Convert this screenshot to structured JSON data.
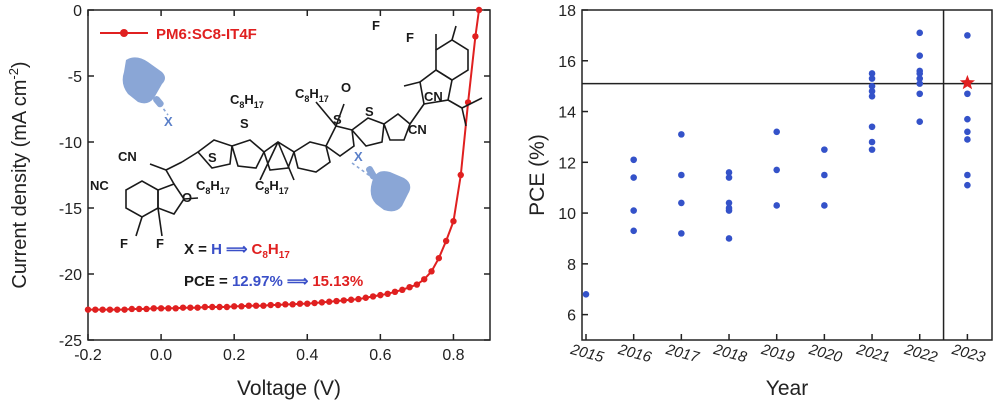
{
  "chart_data": [
    {
      "type": "line",
      "xlabel": "Voltage (V)",
      "ylabel": "Current density (mA cm",
      "ylabel_sup": "-2",
      "ylabel_close": ")",
      "xlim": [
        -0.2,
        0.9
      ],
      "ylim": [
        -25,
        0
      ],
      "xticks": [
        "-0.2",
        "0.0",
        "0.2",
        "0.4",
        "0.6",
        "0.8"
      ],
      "yticks": [
        "-25",
        "-20",
        "-15",
        "-10",
        "-5",
        "0"
      ],
      "xtick_values": [
        -0.2,
        0.0,
        0.2,
        0.4,
        0.6,
        0.8
      ],
      "ytick_values": [
        -25,
        -20,
        -15,
        -10,
        -5,
        0
      ],
      "series": [
        {
          "name": "PM6:SC8-IT4F",
          "color": "#e02020",
          "x": [
            -0.2,
            -0.18,
            -0.16,
            -0.14,
            -0.12,
            -0.1,
            -0.08,
            -0.06,
            -0.04,
            -0.02,
            0.0,
            0.02,
            0.04,
            0.06,
            0.08,
            0.1,
            0.12,
            0.14,
            0.16,
            0.18,
            0.2,
            0.22,
            0.24,
            0.26,
            0.28,
            0.3,
            0.32,
            0.34,
            0.36,
            0.38,
            0.4,
            0.42,
            0.44,
            0.46,
            0.48,
            0.5,
            0.52,
            0.54,
            0.56,
            0.58,
            0.6,
            0.62,
            0.64,
            0.66,
            0.68,
            0.7,
            0.72,
            0.74,
            0.76,
            0.78,
            0.8,
            0.82,
            0.84,
            0.86,
            0.87
          ],
          "y": [
            -22.7,
            -22.7,
            -22.7,
            -22.7,
            -22.7,
            -22.7,
            -22.65,
            -22.65,
            -22.65,
            -22.6,
            -22.6,
            -22.6,
            -22.6,
            -22.55,
            -22.55,
            -22.55,
            -22.5,
            -22.5,
            -22.5,
            -22.5,
            -22.45,
            -22.45,
            -22.4,
            -22.4,
            -22.4,
            -22.35,
            -22.35,
            -22.3,
            -22.3,
            -22.25,
            -22.25,
            -22.2,
            -22.15,
            -22.1,
            -22.05,
            -22.0,
            -21.95,
            -21.9,
            -21.8,
            -21.7,
            -21.6,
            -21.5,
            -21.35,
            -21.2,
            -21.0,
            -20.8,
            -20.4,
            -19.8,
            -18.8,
            -17.5,
            -16.0,
            -12.5,
            -7.0,
            -2.0,
            0.0
          ]
        }
      ],
      "annotations": {
        "x_label": "X = ",
        "x_from": "H",
        "x_arrow": "⟹",
        "x_to_main": "C",
        "x_to_sub": "8",
        "x_to_main2": "H",
        "x_to_sub2": "17",
        "pce_label": "PCE = ",
        "pce_from": "12.97%",
        "pce_arrow": "⟹",
        "pce_to": "15.13%",
        "struct_labels": {
          "nc": "NC",
          "cn": "CN",
          "o": "O",
          "s": "S",
          "f": "F",
          "x": "X",
          "c": "C",
          "h": "H",
          "sub8": "8",
          "sub17": "17"
        },
        "colors": {
          "blue": "#3a4fc8",
          "red": "#e02020",
          "hand": "#8aa6d6"
        }
      }
    },
    {
      "type": "scatter",
      "xlabel": "Year",
      "ylabel": "PCE (%)",
      "categories": [
        "2015",
        "2016",
        "2017",
        "2018",
        "2019",
        "2020",
        "2021",
        "2022",
        "2023"
      ],
      "ylim": [
        5,
        18
      ],
      "yticks": [
        "6",
        "8",
        "10",
        "12",
        "14",
        "16",
        "18"
      ],
      "ytick_values": [
        6,
        8,
        10,
        12,
        14,
        16,
        18
      ],
      "hline": 15.1,
      "vline_after": "2022",
      "grid": false,
      "points_color": "#3452c9",
      "star_color": "#e02020",
      "points": [
        {
          "year": "2015",
          "values": [
            6.8
          ]
        },
        {
          "year": "2016",
          "values": [
            12.1,
            11.4,
            10.1,
            9.3
          ]
        },
        {
          "year": "2017",
          "values": [
            13.1,
            11.5,
            10.4,
            9.2
          ]
        },
        {
          "year": "2018",
          "values": [
            11.6,
            11.4,
            10.4,
            10.2,
            10.1,
            9.0
          ]
        },
        {
          "year": "2019",
          "values": [
            13.2,
            11.7,
            10.3
          ]
        },
        {
          "year": "2020",
          "values": [
            12.5,
            11.5,
            10.3
          ]
        },
        {
          "year": "2021",
          "values": [
            15.5,
            15.3,
            15.0,
            14.8,
            14.6,
            13.4,
            12.8,
            12.5
          ]
        },
        {
          "year": "2022",
          "values": [
            17.1,
            16.2,
            15.6,
            15.5,
            15.3,
            15.1,
            14.7,
            13.6
          ]
        },
        {
          "year": "2023",
          "values": [
            17.0,
            14.7,
            13.7,
            13.2,
            12.9,
            11.5,
            11.1
          ]
        }
      ],
      "highlight": {
        "year": "2023",
        "value": 15.13,
        "marker": "star"
      }
    }
  ]
}
